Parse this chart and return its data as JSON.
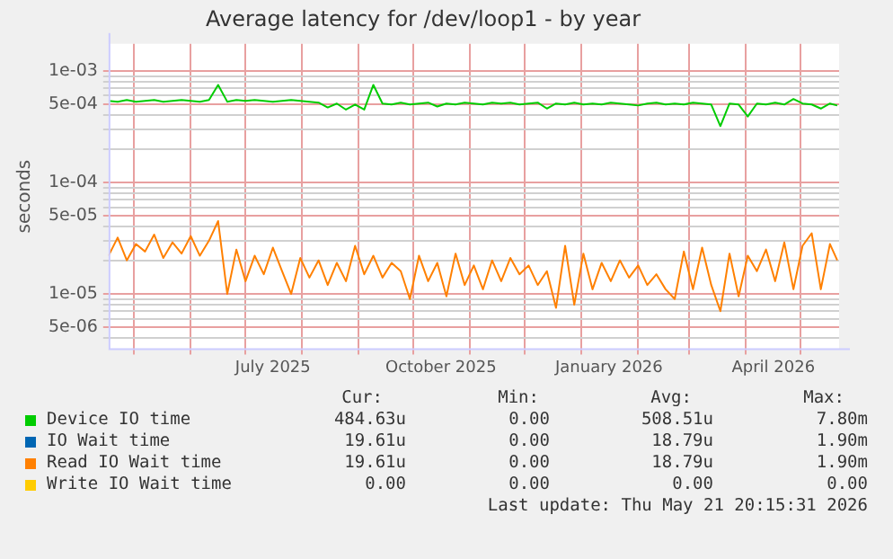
{
  "chart_data": {
    "type": "line",
    "title": "Average latency for /dev/loop1 - by year",
    "ylabel": "seconds",
    "log": true,
    "grid": true,
    "legend": "bottom",
    "marker": "none",
    "line_style": "solid",
    "xlim": [
      "2025-04-17",
      "2026-05-22"
    ],
    "xticks": [
      {
        "value": "2025-05-01",
        "label": null
      },
      {
        "value": "2025-06-01",
        "label": null
      },
      {
        "value": "2025-07-01",
        "label": null
      },
      {
        "value": "2025-07-16",
        "label": "July 2025"
      },
      {
        "value": "2025-08-01",
        "label": null
      },
      {
        "value": "2025-09-01",
        "label": null
      },
      {
        "value": "2025-10-01",
        "label": null
      },
      {
        "value": "2025-10-16",
        "label": "October 2025"
      },
      {
        "value": "2025-11-01",
        "label": null
      },
      {
        "value": "2025-12-01",
        "label": null
      },
      {
        "value": "2026-01-01",
        "label": null
      },
      {
        "value": "2026-01-16",
        "label": "January 2026"
      },
      {
        "value": "2026-02-01",
        "label": null
      },
      {
        "value": "2026-03-01",
        "label": null
      },
      {
        "value": "2026-04-01",
        "label": null
      },
      {
        "value": "2026-04-16",
        "label": "April 2026"
      },
      {
        "value": "2026-05-01",
        "label": null
      }
    ],
    "ylim": [
      3.2e-06,
      0.00175
    ],
    "yticks": [
      {
        "value": 4e-06,
        "label": null
      },
      {
        "value": 5e-06,
        "label": "5e-06"
      },
      {
        "value": 6e-06,
        "label": null
      },
      {
        "value": 7e-06,
        "label": null
      },
      {
        "value": 8e-06,
        "label": null
      },
      {
        "value": 9e-06,
        "label": null
      },
      {
        "value": 1e-05,
        "label": "1e-05"
      },
      {
        "value": 2e-05,
        "label": null
      },
      {
        "value": 3e-05,
        "label": null
      },
      {
        "value": 4e-05,
        "label": null
      },
      {
        "value": 5e-05,
        "label": "5e-05"
      },
      {
        "value": 6e-05,
        "label": null
      },
      {
        "value": 7e-05,
        "label": null
      },
      {
        "value": 8e-05,
        "label": null
      },
      {
        "value": 9e-05,
        "label": null
      },
      {
        "value": 0.0001,
        "label": "1e-04"
      },
      {
        "value": 0.0002,
        "label": null
      },
      {
        "value": 0.0003,
        "label": null
      },
      {
        "value": 0.0004,
        "label": null
      },
      {
        "value": 0.0005,
        "label": "5e-04"
      },
      {
        "value": 0.0006,
        "label": null
      },
      {
        "value": 0.0007,
        "label": null
      },
      {
        "value": 0.0008,
        "label": null
      },
      {
        "value": 0.0009,
        "label": null
      },
      {
        "value": 0.001,
        "label": "1e-03"
      }
    ],
    "x": [
      "2025-04-17",
      "2025-04-22",
      "2025-04-27",
      "2025-05-02",
      "2025-05-07",
      "2025-05-12",
      "2025-05-17",
      "2025-05-22",
      "2025-05-27",
      "2025-06-01",
      "2025-06-06",
      "2025-06-11",
      "2025-06-16",
      "2025-06-21",
      "2025-06-26",
      "2025-07-01",
      "2025-07-06",
      "2025-07-11",
      "2025-07-16",
      "2025-07-21",
      "2025-07-26",
      "2025-07-31",
      "2025-08-05",
      "2025-08-10",
      "2025-08-15",
      "2025-08-20",
      "2025-08-25",
      "2025-08-30",
      "2025-09-04",
      "2025-09-09",
      "2025-09-14",
      "2025-09-19",
      "2025-09-24",
      "2025-09-29",
      "2025-10-04",
      "2025-10-09",
      "2025-10-14",
      "2025-10-19",
      "2025-10-24",
      "2025-10-29",
      "2025-11-03",
      "2025-11-08",
      "2025-11-13",
      "2025-11-18",
      "2025-11-23",
      "2025-11-28",
      "2025-12-03",
      "2025-12-08",
      "2025-12-13",
      "2025-12-18",
      "2025-12-23",
      "2025-12-28",
      "2026-01-02",
      "2026-01-07",
      "2026-01-12",
      "2026-01-17",
      "2026-01-22",
      "2026-01-27",
      "2026-02-01",
      "2026-02-06",
      "2026-02-11",
      "2026-02-16",
      "2026-02-21",
      "2026-02-26",
      "2026-03-03",
      "2026-03-08",
      "2026-03-13",
      "2026-03-18",
      "2026-03-23",
      "2026-03-28",
      "2026-04-02",
      "2026-04-07",
      "2026-04-12",
      "2026-04-17",
      "2026-04-22",
      "2026-04-27",
      "2026-05-02",
      "2026-05-07",
      "2026-05-12",
      "2026-05-17",
      "2026-05-21"
    ],
    "series": [
      {
        "name": "Device IO time",
        "color": "#00cc00",
        "values": [
          0.00054,
          0.00053,
          0.00055,
          0.00053,
          0.00054,
          0.00055,
          0.00053,
          0.00054,
          0.00055,
          0.00054,
          0.00053,
          0.00055,
          0.00075,
          0.00053,
          0.00055,
          0.00054,
          0.00055,
          0.00054,
          0.00053,
          0.00054,
          0.00055,
          0.00054,
          0.00053,
          0.00052,
          0.00047,
          0.00051,
          0.00045,
          0.0005,
          0.00045,
          0.00075,
          0.00051,
          0.0005,
          0.00052,
          0.0005,
          0.00051,
          0.00052,
          0.00048,
          0.00051,
          0.0005,
          0.00052,
          0.00051,
          0.0005,
          0.00052,
          0.00051,
          0.00052,
          0.0005,
          0.00051,
          0.00052,
          0.00046,
          0.00051,
          0.0005,
          0.00052,
          0.0005,
          0.00051,
          0.0005,
          0.00052,
          0.00051,
          0.0005,
          0.00049,
          0.00051,
          0.00052,
          0.0005,
          0.00051,
          0.0005,
          0.00052,
          0.00051,
          0.0005,
          0.00032,
          0.00051,
          0.0005,
          0.00039,
          0.00051,
          0.0005,
          0.00052,
          0.0005,
          0.00056,
          0.00051,
          0.0005,
          0.00046,
          0.00051,
          0.00049
        ]
      },
      {
        "name": "IO Wait time",
        "color": "#0066b3",
        "values": [
          null,
          null,
          null,
          null,
          null,
          null,
          null,
          null,
          null,
          null,
          null,
          null,
          null,
          null,
          null,
          null,
          null,
          null,
          null,
          null,
          null,
          null,
          null,
          null,
          null,
          null,
          null,
          null,
          null,
          null,
          null,
          null,
          null,
          null,
          null,
          null,
          null,
          null,
          null,
          null,
          null,
          null,
          null,
          null,
          null,
          null,
          null,
          null,
          null,
          null,
          null,
          null,
          null,
          null,
          null,
          null,
          null,
          null,
          null,
          null,
          null,
          null,
          null,
          null,
          null,
          null,
          null,
          null,
          null,
          null,
          null,
          null,
          null,
          null,
          null,
          null,
          null,
          null,
          null,
          null,
          null
        ]
      },
      {
        "name": "Read IO Wait time",
        "color": "#ff8000",
        "values": [
          2.2e-05,
          3.2e-05,
          2e-05,
          2.8e-05,
          2.4e-05,
          3.4e-05,
          2.1e-05,
          2.9e-05,
          2.3e-05,
          3.3e-05,
          2.2e-05,
          3e-05,
          4.5e-05,
          1e-05,
          2.5e-05,
          1.3e-05,
          2.2e-05,
          1.5e-05,
          2.6e-05,
          1.6e-05,
          1e-05,
          2.1e-05,
          1.4e-05,
          2e-05,
          1.2e-05,
          1.9e-05,
          1.3e-05,
          2.7e-05,
          1.5e-05,
          2.2e-05,
          1.4e-05,
          1.9e-05,
          1.6e-05,
          9e-06,
          2.2e-05,
          1.3e-05,
          1.9e-05,
          9.5e-06,
          2.3e-05,
          1.2e-05,
          1.8e-05,
          1.1e-05,
          2e-05,
          1.3e-05,
          2.1e-05,
          1.5e-05,
          1.8e-05,
          1.2e-05,
          1.6e-05,
          7.5e-06,
          2.7e-05,
          8e-06,
          2.3e-05,
          1.1e-05,
          1.9e-05,
          1.3e-05,
          2e-05,
          1.4e-05,
          1.8e-05,
          1.2e-05,
          1.5e-05,
          1.1e-05,
          9e-06,
          2.4e-05,
          1.1e-05,
          2.6e-05,
          1.2e-05,
          7e-06,
          2.3e-05,
          9.5e-06,
          2.2e-05,
          1.6e-05,
          2.5e-05,
          1.3e-05,
          2.9e-05,
          1.1e-05,
          2.7e-05,
          3.5e-05,
          1.1e-05,
          2.8e-05,
          2e-05
        ]
      },
      {
        "name": "Write IO Wait time",
        "color": "#ffcc00",
        "values": [
          null,
          null,
          null,
          null,
          null,
          null,
          null,
          null,
          null,
          null,
          null,
          null,
          null,
          null,
          null,
          null,
          null,
          null,
          null,
          null,
          null,
          null,
          null,
          null,
          null,
          null,
          null,
          null,
          null,
          null,
          null,
          null,
          null,
          null,
          null,
          null,
          null,
          null,
          null,
          null,
          null,
          null,
          null,
          null,
          null,
          null,
          null,
          null,
          null,
          null,
          null,
          null,
          null,
          null,
          null,
          null,
          null,
          null,
          null,
          null,
          null,
          null,
          null,
          null,
          null,
          null,
          null,
          null,
          null,
          null,
          null,
          null,
          null,
          null,
          null,
          null,
          null,
          null,
          null,
          null,
          null
        ]
      }
    ],
    "annotations": [
      "Cur:",
      "Min:",
      "Avg:",
      "Max:",
      "484.63u",
      "0.00",
      "508.51u",
      "7.80m",
      "19.61u",
      "0.00",
      "18.79u",
      "1.90m",
      "19.61u",
      "0.00",
      "18.79u",
      "1.90m",
      "0.00",
      "0.00",
      "0.00",
      "0.00",
      "Last update: Thu May 21 20:15:31 2026"
    ]
  }
}
